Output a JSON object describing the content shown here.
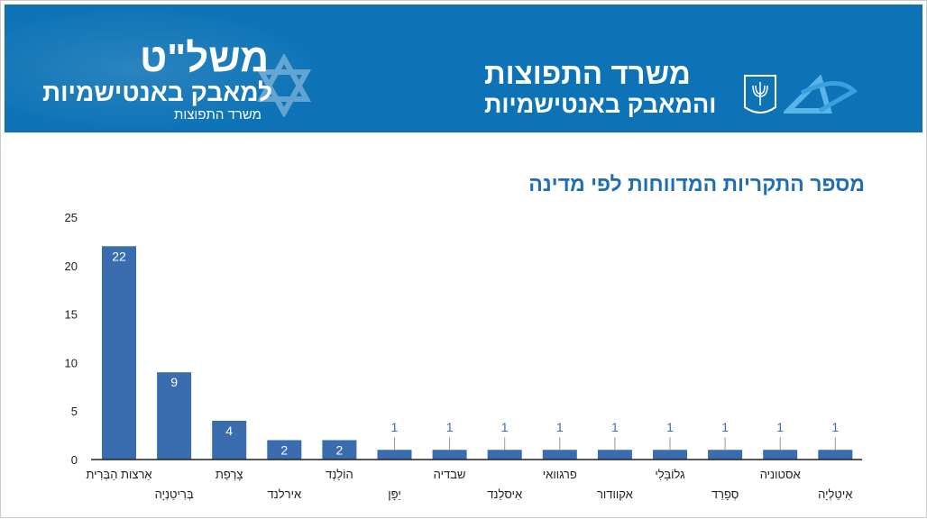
{
  "banner": {
    "ministry_line1": "משרד התפוצות",
    "ministry_line2": "והמאבק באנטישמיות",
    "project_title": "משל\"ט",
    "project_subtitle": "למאבק באנטישמיות",
    "project_ministry": "משרד התפוצות"
  },
  "colors": {
    "banner": "#0d73b6",
    "bar": "#3a6db0",
    "title": "#1f6db2"
  },
  "chart_data": {
    "type": "bar",
    "title": "מספר התקריות המדווחות לפי מדינה",
    "xlabel": "",
    "ylabel": "",
    "ylim": [
      0,
      25
    ],
    "yticks": [
      0,
      5,
      10,
      15,
      20,
      25
    ],
    "grid": false,
    "categories": [
      "אַרצות הַבְּרִית",
      "בְּרִיטַנְיָה",
      "צָרְפַת",
      "אירלנד",
      "הוֹלַנְד",
      "יַפָּן",
      "שבדיה",
      "אִיסלַנד",
      "פרגוואי",
      "אקוודור",
      "גלוֹבָּלִי",
      "סְפָרַד",
      "אסטוניה",
      "אִיטַלְיָה"
    ],
    "values": [
      22,
      9,
      4,
      2,
      2,
      1,
      1,
      1,
      1,
      1,
      1,
      1,
      1,
      1
    ]
  }
}
